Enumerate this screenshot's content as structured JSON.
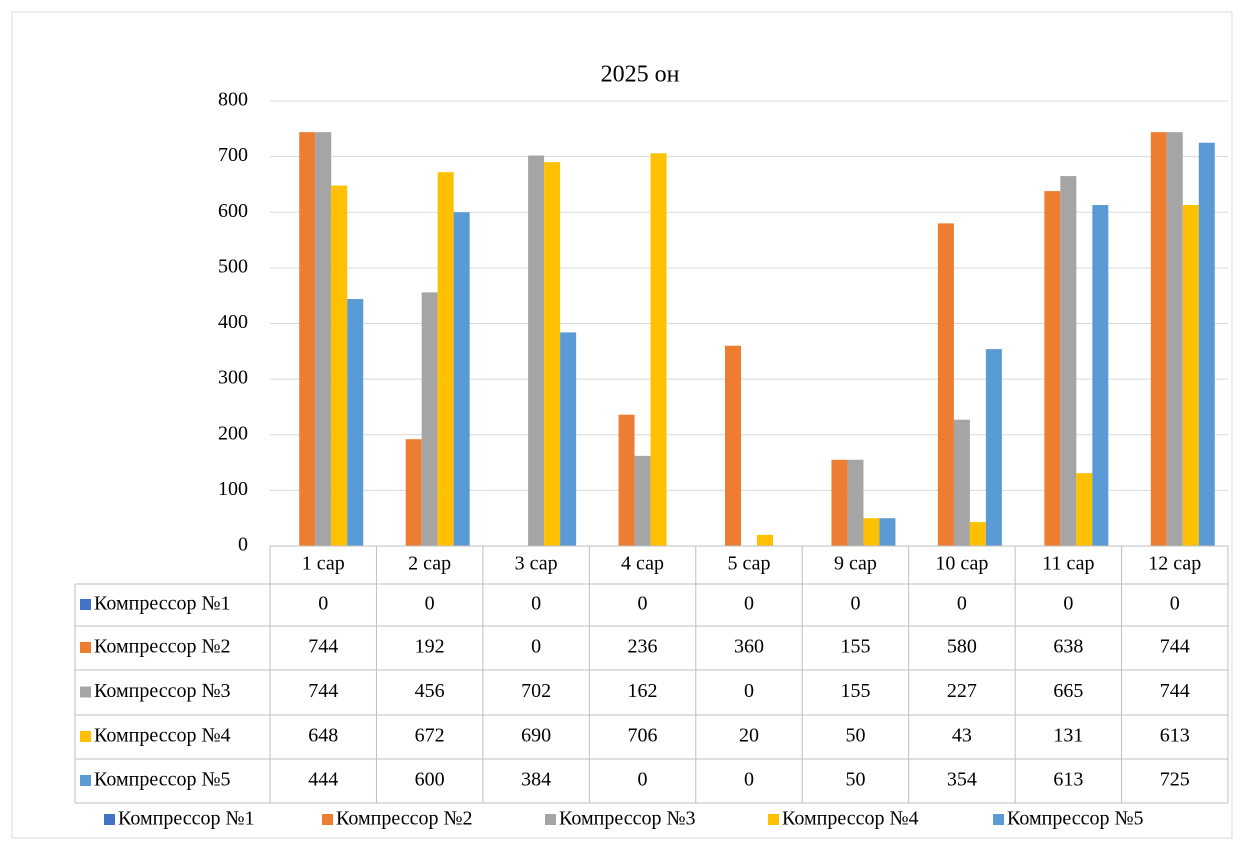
{
  "chart_data": {
    "type": "bar",
    "title": "2025 он",
    "categories": [
      "1 сар",
      "2 сар",
      "3 сар",
      "4 сар",
      "5 сар",
      "9 сар",
      "10 сар",
      "11 сар",
      "12 сар"
    ],
    "series": [
      {
        "name": "Компрессор №1",
        "color": "#4472c4",
        "values": [
          0,
          0,
          0,
          0,
          0,
          0,
          0,
          0,
          0
        ]
      },
      {
        "name": "Компрессор №2",
        "color": "#ed7d31",
        "values": [
          744,
          192,
          0,
          236,
          360,
          155,
          580,
          638,
          744
        ]
      },
      {
        "name": "Компрессор №3",
        "color": "#a5a5a5",
        "values": [
          744,
          456,
          702,
          162,
          0,
          155,
          227,
          665,
          744
        ]
      },
      {
        "name": "Компрессор №4",
        "color": "#ffc000",
        "values": [
          648,
          672,
          690,
          706,
          20,
          50,
          43,
          131,
          613
        ]
      },
      {
        "name": "Компрессор №5",
        "color": "#5b9bd5",
        "values": [
          444,
          600,
          384,
          0,
          0,
          50,
          354,
          613,
          725
        ]
      }
    ],
    "ylim": [
      0,
      800
    ],
    "yticks": [
      0,
      100,
      200,
      300,
      400,
      500,
      600,
      700,
      800
    ],
    "grid": true,
    "legend": "bottom"
  }
}
